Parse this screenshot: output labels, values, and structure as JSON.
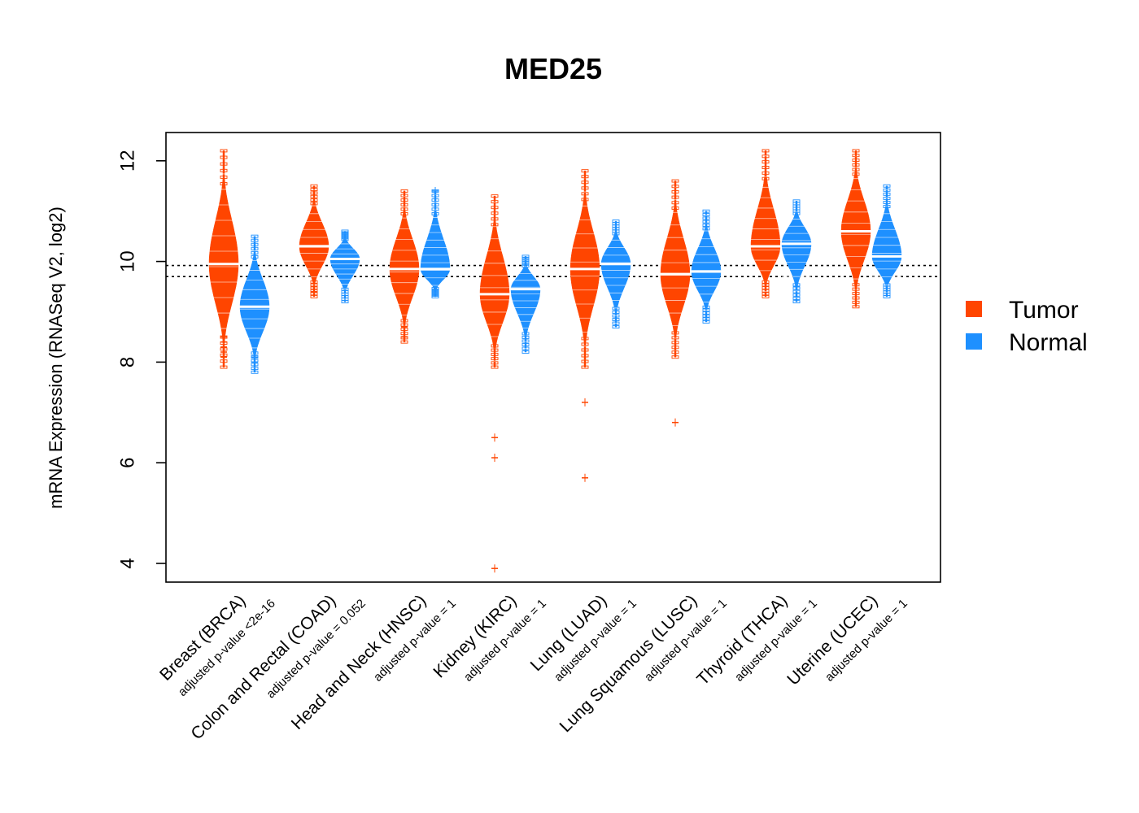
{
  "chart_data": {
    "type": "violin",
    "title": "MED25",
    "xlabel": "",
    "ylabel": "mRNA Expression (RNASeq V2, log2)",
    "ylim": [
      3.6,
      12.5
    ],
    "yticks": [
      4,
      6,
      8,
      10,
      12
    ],
    "reference_lines": [
      9.92,
      9.7
    ],
    "legend": {
      "position": "right",
      "entries": [
        "Tumor",
        "Normal"
      ]
    },
    "colors": {
      "Tumor": "#FF4500",
      "Normal": "#1E90FF"
    },
    "categories": [
      {
        "name": "Breast (BRCA)",
        "pvalue": "adjusted p-value <2e-16",
        "tumor": {
          "median": 9.95,
          "min": 7.9,
          "max": 12.2,
          "outliers": [
            8.1,
            8.2,
            8.3,
            8.4,
            8.5
          ]
        },
        "normal": {
          "median": 9.1,
          "min": 7.8,
          "max": 10.5,
          "outliers": [
            8.0,
            8.1
          ]
        }
      },
      {
        "name": "Colon and Rectal (COAD)",
        "pvalue": "adjusted p-value = 0.052",
        "tumor": {
          "median": 10.3,
          "min": 9.3,
          "max": 11.5,
          "outliers": [
            9.4,
            9.5
          ]
        },
        "normal": {
          "median": 10.05,
          "min": 9.2,
          "max": 10.6,
          "outliers": []
        }
      },
      {
        "name": "Head and Neck (HNSC)",
        "pvalue": "adjusted p-value = 1",
        "tumor": {
          "median": 9.85,
          "min": 8.4,
          "max": 11.4,
          "outliers": [
            8.5,
            8.7
          ]
        },
        "normal": {
          "median": 9.85,
          "min": 9.3,
          "max": 11.4,
          "outliers": [
            11.4
          ]
        }
      },
      {
        "name": "Kidney (KIRC)",
        "pvalue": "adjusted p-value = 1",
        "tumor": {
          "median": 9.35,
          "min": 7.9,
          "max": 11.3,
          "outliers": [
            6.5,
            6.1,
            3.9
          ]
        },
        "normal": {
          "median": 9.45,
          "min": 8.2,
          "max": 10.1,
          "outliers": []
        }
      },
      {
        "name": "Lung (LUAD)",
        "pvalue": "adjusted p-value = 1",
        "tumor": {
          "median": 9.85,
          "min": 7.9,
          "max": 11.8,
          "outliers": [
            7.2,
            5.7
          ]
        },
        "normal": {
          "median": 9.95,
          "min": 8.7,
          "max": 10.8,
          "outliers": []
        }
      },
      {
        "name": "Lung Squamous (LUSC)",
        "pvalue": "adjusted p-value = 1",
        "tumor": {
          "median": 9.75,
          "min": 8.1,
          "max": 11.6,
          "outliers": [
            6.8
          ]
        },
        "normal": {
          "median": 9.8,
          "min": 8.8,
          "max": 11.0,
          "outliers": []
        }
      },
      {
        "name": "Thyroid (THCA)",
        "pvalue": "adjusted p-value = 1",
        "tumor": {
          "median": 10.3,
          "min": 9.3,
          "max": 12.2,
          "outliers": []
        },
        "normal": {
          "median": 10.35,
          "min": 9.2,
          "max": 11.2,
          "outliers": [
            9.5
          ]
        }
      },
      {
        "name": "Uterine (UCEC)",
        "pvalue": "adjusted p-value = 1",
        "tumor": {
          "median": 10.6,
          "min": 9.1,
          "max": 12.2,
          "outliers": []
        },
        "normal": {
          "median": 10.1,
          "min": 9.3,
          "max": 11.5,
          "outliers": []
        }
      }
    ]
  }
}
